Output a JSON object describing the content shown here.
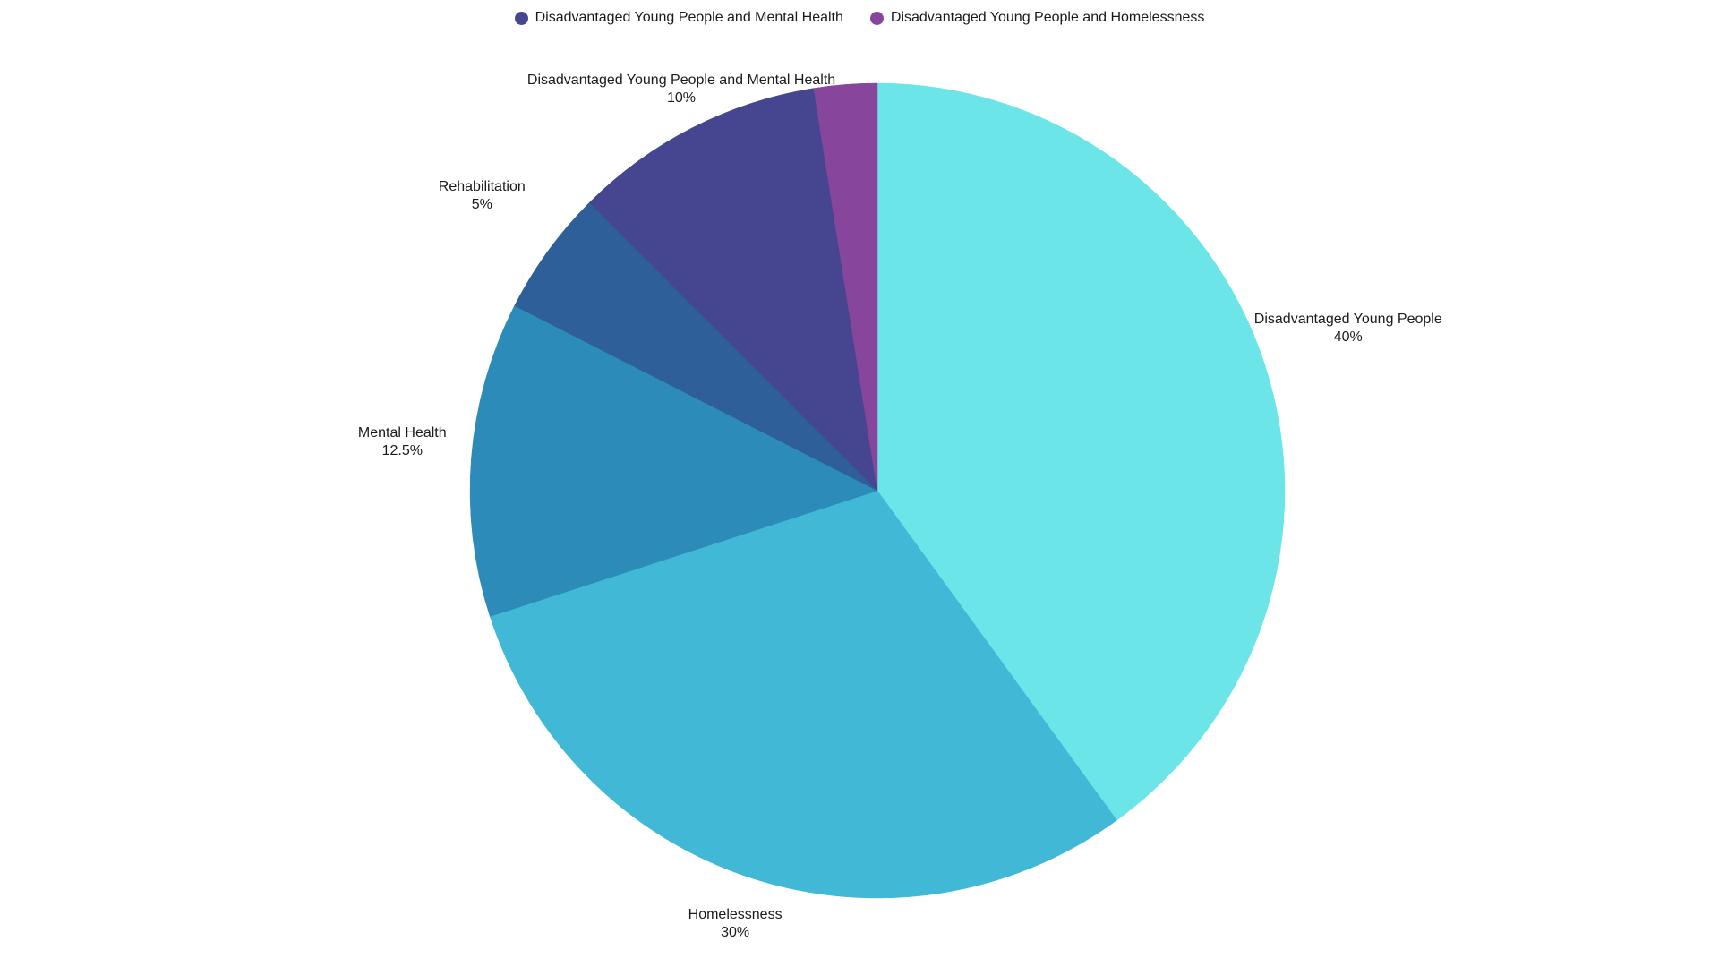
{
  "chart_data": {
    "type": "pie",
    "title": "",
    "start_angle_deg": 0,
    "direction": "clockwise",
    "slices": [
      {
        "label": "Disadvantaged Young People",
        "value": 40,
        "value_text": "40%",
        "color": "#6ce5e8"
      },
      {
        "label": "Homelessness",
        "value": 30,
        "value_text": "30%",
        "color": "#41b8d5"
      },
      {
        "label": "Mental Health",
        "value": 12.5,
        "value_text": "12.5%",
        "color": "#2d8bba"
      },
      {
        "label": "Rehabilitation",
        "value": 5,
        "value_text": "5%",
        "color": "#2f5f98"
      },
      {
        "label": "Disadvantaged Young People and Mental Health",
        "value": 10,
        "value_text": "10%",
        "color": "#45468f"
      },
      {
        "label": "Disadvantaged Young People and Homelessness",
        "value": 2.5,
        "value_text": "",
        "color": "#87469c"
      }
    ],
    "legend": {
      "placement": "top-center",
      "entries": [
        {
          "label": "Disadvantaged Young People and Mental Health",
          "color": "#45468f"
        },
        {
          "label": "Disadvantaged Young People and Homelessness",
          "color": "#87469c"
        }
      ]
    }
  }
}
